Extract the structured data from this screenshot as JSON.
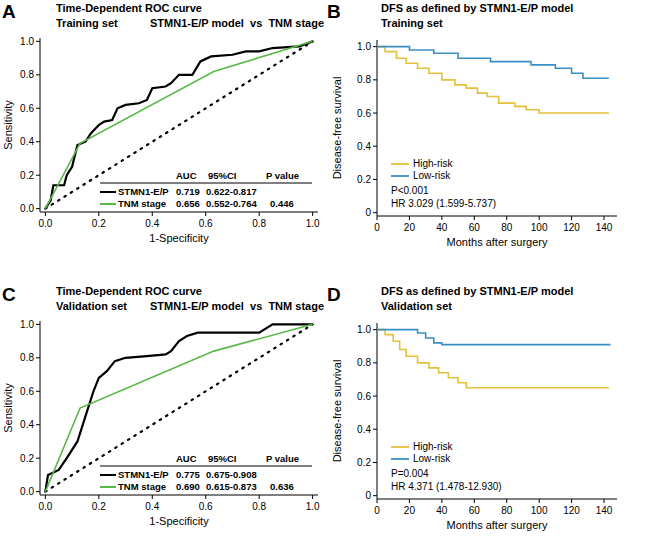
{
  "chart_data": [
    {
      "label": "A",
      "type": "line",
      "title": "Time-Dependent ROC curve",
      "subtitle": "Training set",
      "comparison": "STMN1-E/P model  vs  TNM stage",
      "x_label": "1-Specificity",
      "y_label": "Sensitivity",
      "xlim": [
        -0.02,
        1.02
      ],
      "ylim": [
        -0.02,
        1.02
      ],
      "xticks": [
        {
          "value": 0,
          "label": "0.0"
        },
        0.2,
        0.4,
        0.6,
        0.8,
        {
          "value": 1,
          "label": "1.0"
        }
      ],
      "yticks": [
        {
          "value": 0,
          "label": "0.0"
        },
        0.2,
        0.4,
        0.6,
        0.8,
        {
          "value": 1,
          "label": "1.0"
        }
      ],
      "grid": false,
      "legend": "bottom-right",
      "table_header": [
        "AUC",
        "95%CI",
        "P value"
      ],
      "series": [
        {
          "name": "STMN1-E/P",
          "color": "#000000",
          "line_style": "solid",
          "x": [
            0,
            0.02,
            0.03,
            0.07,
            0.08,
            0.1,
            0.12,
            0.15,
            0.17,
            0.2,
            0.22,
            0.25,
            0.27,
            0.3,
            0.35,
            0.38,
            0.4,
            0.45,
            0.47,
            0.5,
            0.55,
            0.58,
            0.62,
            0.7,
            0.75,
            0.8,
            0.85,
            0.95,
            1.0
          ],
          "values": [
            0,
            0.05,
            0.14,
            0.14,
            0.2,
            0.25,
            0.38,
            0.4,
            0.45,
            0.5,
            0.52,
            0.53,
            0.6,
            0.62,
            0.63,
            0.65,
            0.72,
            0.73,
            0.75,
            0.8,
            0.8,
            0.88,
            0.91,
            0.92,
            0.94,
            0.94,
            0.96,
            0.97,
            1.0
          ],
          "auc": 0.719,
          "ci": "0.622-0.817"
        },
        {
          "name": "TNM stage",
          "color": "#58b848",
          "line_style": "solid",
          "x": [
            0,
            0.13,
            0.63,
            1.0
          ],
          "values": [
            0,
            0.39,
            0.82,
            1.0
          ],
          "auc": 0.656,
          "ci": "0.552-0.764",
          "p_value": 0.446
        }
      ]
    },
    {
      "label": "B",
      "type": "line",
      "title": "DFS as defined by STMN1-E/P model",
      "subtitle": "Training set",
      "x_label": "Months after surgery",
      "y_label": "Disease-free survival",
      "xlim": [
        0,
        148
      ],
      "ylim": [
        -0.02,
        1.04
      ],
      "xticks": [
        0,
        20,
        40,
        60,
        80,
        100,
        120,
        140
      ],
      "yticks": [
        0,
        0.2,
        0.4,
        0.6,
        0.8,
        {
          "value": 1,
          "label": "1.0"
        }
      ],
      "grid": false,
      "legend": "bottom-left",
      "annotations": [
        "P<0.001",
        "HR 3.029 (1.599-5.737)"
      ],
      "series": [
        {
          "name": "High-risk",
          "color": "#e5c03a",
          "line_style": "step",
          "x": [
            0,
            5,
            12,
            18,
            25,
            32,
            40,
            48,
            55,
            62,
            68,
            75,
            85,
            92,
            100,
            143
          ],
          "values": [
            1.0,
            0.97,
            0.93,
            0.9,
            0.87,
            0.84,
            0.8,
            0.77,
            0.75,
            0.72,
            0.7,
            0.66,
            0.64,
            0.62,
            0.6,
            0.6
          ]
        },
        {
          "name": "Low-risk",
          "color": "#3b8ec2",
          "line_style": "step",
          "x": [
            0,
            20,
            35,
            50,
            70,
            95,
            110,
            120,
            127,
            143
          ],
          "values": [
            1.0,
            0.98,
            0.96,
            0.93,
            0.91,
            0.89,
            0.87,
            0.84,
            0.81,
            0.81
          ]
        }
      ]
    },
    {
      "label": "C",
      "type": "line",
      "title": "Time-Dependent ROC curve",
      "subtitle": "Validation set",
      "comparison": "STMN1-E/P model  vs  TNM stage",
      "x_label": "1-Specificity",
      "y_label": "Sensitivity",
      "xlim": [
        -0.02,
        1.02
      ],
      "ylim": [
        -0.02,
        1.02
      ],
      "xticks": [
        {
          "value": 0,
          "label": "0.0"
        },
        0.2,
        0.4,
        0.6,
        0.8,
        {
          "value": 1,
          "label": "1.0"
        }
      ],
      "yticks": [
        {
          "value": 0,
          "label": "0.0"
        },
        0.2,
        0.4,
        0.6,
        0.8,
        {
          "value": 1,
          "label": "1.0"
        }
      ],
      "grid": false,
      "legend": "bottom-right",
      "table_header": [
        "AUC",
        "95%CI",
        "P value"
      ],
      "series": [
        {
          "name": "STMN1-E/P",
          "color": "#000000",
          "line_style": "solid",
          "x": [
            0,
            0.01,
            0.05,
            0.08,
            0.12,
            0.15,
            0.18,
            0.2,
            0.23,
            0.26,
            0.3,
            0.38,
            0.45,
            0.47,
            0.5,
            0.53,
            0.57,
            0.8,
            0.85,
            1.0
          ],
          "values": [
            0,
            0.1,
            0.13,
            0.2,
            0.3,
            0.45,
            0.6,
            0.68,
            0.72,
            0.78,
            0.8,
            0.81,
            0.82,
            0.84,
            0.9,
            0.93,
            0.95,
            0.95,
            1.0,
            1.0
          ],
          "auc": 0.775,
          "ci": "0.675-0.908"
        },
        {
          "name": "TNM stage",
          "color": "#58b848",
          "line_style": "solid",
          "x": [
            0,
            0.13,
            0.63,
            1.0
          ],
          "values": [
            0,
            0.5,
            0.84,
            1.0
          ],
          "auc": 0.69,
          "ci": "0.615-0.873",
          "p_value": 0.636
        }
      ]
    },
    {
      "label": "D",
      "type": "line",
      "title": "DFS as defined by STMN1-E/P model",
      "subtitle": "Validation set",
      "x_label": "Months after surgery",
      "y_label": "Disease-free survival",
      "xlim": [
        0,
        148
      ],
      "ylim": [
        -0.02,
        1.04
      ],
      "xticks": [
        0,
        20,
        40,
        60,
        80,
        100,
        120,
        140
      ],
      "yticks": [
        0,
        0.2,
        0.4,
        0.6,
        0.8,
        {
          "value": 1,
          "label": "1.0"
        }
      ],
      "grid": false,
      "legend": "bottom-left",
      "annotations": [
        "P=0.004",
        "HR 4.371 (1.478-12.930)"
      ],
      "series": [
        {
          "name": "High-risk",
          "color": "#e5c03a",
          "line_style": "step",
          "x": [
            0,
            5,
            10,
            14,
            18,
            25,
            32,
            38,
            44,
            50,
            55,
            143
          ],
          "values": [
            1.0,
            0.97,
            0.93,
            0.88,
            0.84,
            0.8,
            0.77,
            0.74,
            0.71,
            0.68,
            0.65,
            0.65
          ]
        },
        {
          "name": "Low-risk",
          "color": "#3b8ec2",
          "line_style": "step",
          "x": [
            0,
            25,
            30,
            35,
            40,
            144
          ],
          "values": [
            1.0,
            0.98,
            0.95,
            0.92,
            0.91,
            0.91
          ]
        }
      ]
    }
  ]
}
